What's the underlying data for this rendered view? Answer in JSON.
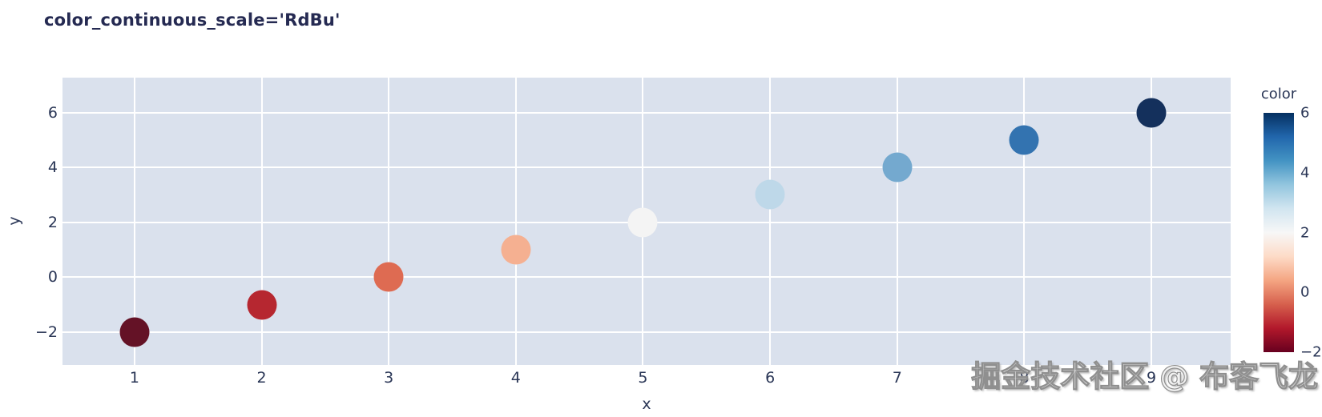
{
  "title": "color_continuous_scale='RdBu'",
  "watermark": "掘金技术社区 @ 布客飞龙",
  "colors": {
    "plot_background": "#dae1ed",
    "gridline": "#ffffff",
    "text": "#2a3656",
    "title_text": "#252a52"
  },
  "chart_data": {
    "type": "scatter",
    "title": "color_continuous_scale='RdBu'",
    "xlabel": "x",
    "ylabel": "y",
    "x": [
      1,
      2,
      3,
      4,
      5,
      6,
      7,
      8,
      9
    ],
    "y": [
      -2,
      -1,
      0,
      1,
      2,
      3,
      4,
      5,
      6
    ],
    "color_values": [
      -2,
      -1,
      0,
      1,
      2,
      3,
      4,
      5,
      6
    ],
    "point_colors": [
      "#641226",
      "#b62730",
      "#de6b52",
      "#f5b091",
      "#f4f4f4",
      "#bed8e9",
      "#74a9cf",
      "#3373b0",
      "#14305c"
    ],
    "marker_size_px": 37,
    "x_ticks": [
      1,
      2,
      3,
      4,
      5,
      6,
      7,
      8,
      9
    ],
    "y_ticks": [
      6,
      4,
      2,
      0,
      -2
    ],
    "x_range": [
      0.433,
      9.624
    ],
    "y_range": [
      -3.195,
      7.27
    ],
    "grid": true,
    "legend": "none",
    "colorbar": {
      "title": "color",
      "ticks": [
        6,
        4,
        2,
        0,
        -2
      ],
      "range": [
        -2,
        6
      ],
      "colorscale_name": "RdBu",
      "gradient_stops": [
        {
          "pos": 0.0,
          "color": "#67001f"
        },
        {
          "pos": 0.1,
          "color": "#b2182b"
        },
        {
          "pos": 0.2,
          "color": "#d6604d"
        },
        {
          "pos": 0.3,
          "color": "#f4a582"
        },
        {
          "pos": 0.4,
          "color": "#fddbc7"
        },
        {
          "pos": 0.5,
          "color": "#f7f7f7"
        },
        {
          "pos": 0.6,
          "color": "#d1e5f0"
        },
        {
          "pos": 0.7,
          "color": "#92c5de"
        },
        {
          "pos": 0.8,
          "color": "#4393c3"
        },
        {
          "pos": 0.9,
          "color": "#2166ac"
        },
        {
          "pos": 1.0,
          "color": "#053061"
        }
      ]
    }
  }
}
